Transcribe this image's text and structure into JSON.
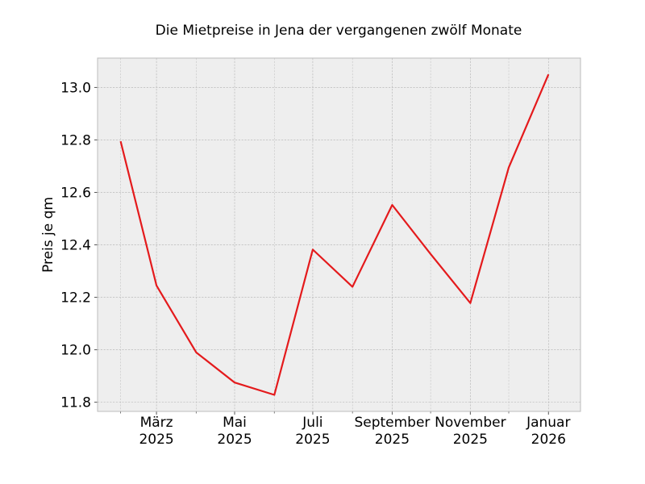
{
  "chart_data": {
    "type": "line",
    "title": "Die Mietpreise in Jena der vergangenen zwölf Monate",
    "xlabel": "",
    "ylabel": "Preis je qm",
    "x": [
      "2025-02",
      "2025-03",
      "2025-04",
      "2025-05",
      "2025-06",
      "2025-07",
      "2025-08",
      "2025-09",
      "2025-10",
      "2025-11",
      "2025-12",
      "2026-01"
    ],
    "series": [
      {
        "name": "",
        "values": [
          12.795,
          12.245,
          11.99,
          11.875,
          11.828,
          12.382,
          12.24,
          12.552,
          12.365,
          12.178,
          12.695,
          13.05
        ]
      }
    ],
    "xlim": [
      "2025-01-14",
      "2026-01-26"
    ],
    "ylim": [
      11.765,
      13.112
    ],
    "yticks": [
      11.8,
      12.0,
      12.2,
      12.4,
      12.6,
      12.8,
      13.0
    ],
    "yticklabels": [
      "11.8",
      "12.0",
      "12.2",
      "12.4",
      "12.6",
      "12.8",
      "13.0"
    ],
    "xticks_major": [
      {
        "x": "2025-03",
        "label_month": "März",
        "label_year": "2025"
      },
      {
        "x": "2025-05",
        "label_month": "Mai",
        "label_year": "2025"
      },
      {
        "x": "2025-07",
        "label_month": "Juli",
        "label_year": "2025"
      },
      {
        "x": "2025-09",
        "label_month": "September",
        "label_year": "2025"
      },
      {
        "x": "2025-11",
        "label_month": "November",
        "label_year": "2025"
      },
      {
        "x": "2026-01",
        "label_month": "Januar",
        "label_year": "2026"
      }
    ],
    "xticks_minor": [
      "2025-02",
      "2025-04",
      "2025-06",
      "2025-08",
      "2025-10",
      "2025-12"
    ],
    "grid": true,
    "colors": {
      "line": "#e41a1c",
      "plot_background": "#eeeeee",
      "grid": "#b0b0b0",
      "frame": "#bcbcbc"
    }
  }
}
